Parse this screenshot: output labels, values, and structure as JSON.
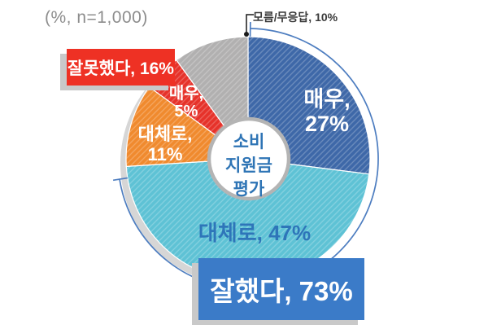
{
  "note": "(%, n=1,000)",
  "callout": {
    "label": "모름/무응답, 10%"
  },
  "center_label": {
    "lines": [
      "소비",
      "지원금",
      "평가"
    ],
    "color": "#2e74b5"
  },
  "boxes": {
    "negative": {
      "label": "잘못했다, 16%",
      "color": "#ee3124"
    },
    "positive": {
      "label": "잘했다, 73%",
      "color": "#3b7bc8"
    }
  },
  "colors": {
    "bracket": "#4d7dc0",
    "pie_shadow": "#d6d6d6",
    "callout_line": "#1a1a1a",
    "ring": "#b4b4b4",
    "hatch": "#ffffff"
  },
  "chart_data": {
    "type": "pie",
    "donut": true,
    "title": "소비 지원금 평가",
    "sample_note": "(%, n=1,000)",
    "units": "%",
    "start_angle_deg": 0,
    "clockwise": true,
    "slices": [
      {
        "name": "매우 잘했다",
        "value": 27,
        "color": "#3e68a8",
        "text_color": "#ffffff",
        "label_line1": "매우,",
        "label_line2": "27%"
      },
      {
        "name": "대체로 잘했다",
        "value": 47,
        "color": "#5ec2d5",
        "text_color": "#2e75b9",
        "label": "대체로, 47%"
      },
      {
        "name": "대체로 잘못했다",
        "value": 11,
        "color": "#f08a2e",
        "text_color": "#ffffff",
        "label_line1": "대체로,",
        "label_line2": "11%"
      },
      {
        "name": "매우 잘못했다",
        "value": 5,
        "color": "#e6322a",
        "text_color": "#ffffff",
        "label_line1": "매우,",
        "label_line2": "5%"
      },
      {
        "name": "모름/무응답",
        "value": 10,
        "color": "#b1b0b0",
        "text_color": "#3b3b3b",
        "callout_label": "모름/무응답, 10%"
      }
    ],
    "groups": [
      {
        "label": "잘했다",
        "value": 73
      },
      {
        "label": "잘못했다",
        "value": 16
      }
    ]
  }
}
